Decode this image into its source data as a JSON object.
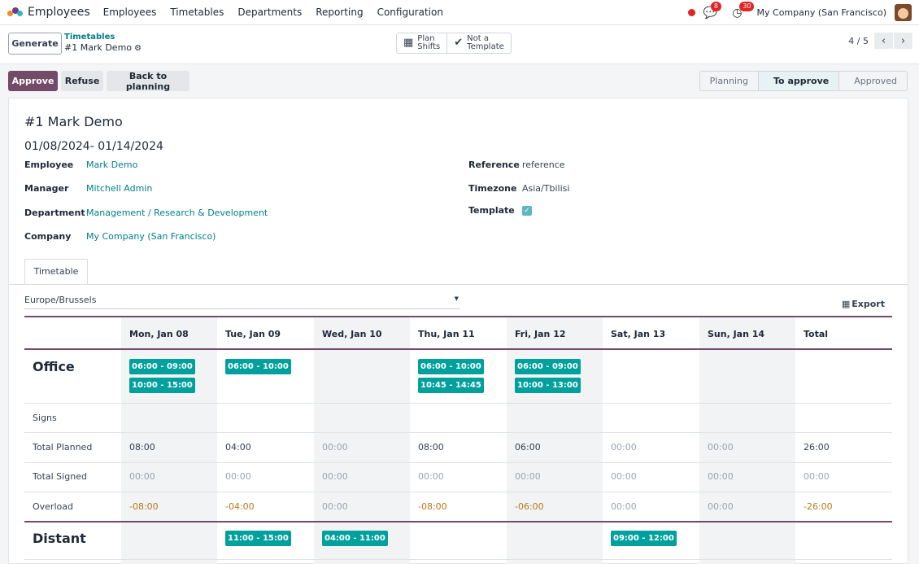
{
  "navbar": {
    "app_name": "Employees",
    "menu": [
      "Employees",
      "Timetables",
      "Departments",
      "Reporting",
      "Configuration"
    ],
    "messages_badge": "8",
    "activities_badge": "30",
    "company": "My Company (San Francisco)"
  },
  "control": {
    "generate_label": "Generate",
    "breadcrumb_parent": "Timetables",
    "breadcrumb_current": "#1 Mark Demo",
    "plan_shifts_line1": "Plan",
    "plan_shifts_line2": "Shifts",
    "not_template_line1": "Not a",
    "not_template_line2": "Template",
    "pager_value": "4 / 5"
  },
  "statusbar": {
    "approve_label": "Approve",
    "refuse_label": "Refuse",
    "back_label": "Back to planning",
    "stages": [
      "Planning",
      "To approve",
      "Approved"
    ],
    "active_stage": "To approve"
  },
  "form": {
    "title": "#1 Mark Demo",
    "date_range": "01/08/2024- 01/14/2024",
    "employee_label": "Employee",
    "employee": "Mark Demo",
    "manager_label": "Manager",
    "manager": "Mitchell Admin",
    "department_label": "Department",
    "department": "Management / Research & Development",
    "company_label": "Company",
    "company": "My Company (San Francisco)",
    "reference_label": "Reference",
    "reference": "reference",
    "timezone_label": "Timezone",
    "timezone": "Asia/Tbilisi",
    "template_label": "Template",
    "template_checked": true
  },
  "timetable": {
    "tab_label": "Timetable",
    "tz_value": "Europe/Brussels",
    "export_label": "Export",
    "days": [
      "Mon, Jan 08",
      "Tue, Jan 09",
      "Wed, Jan 10",
      "Thu, Jan 11",
      "Fri, Jan 12",
      "Sat, Jan 13",
      "Sun, Jan 14"
    ],
    "total_label": "Total",
    "office": {
      "title": "Office",
      "mon_s1": "06:00 - 09:00",
      "mon_s2": "10:00 - 15:00",
      "tue_s1": "06:00 - 10:00",
      "thu_s1": "06:00 - 10:00",
      "thu_s2": "10:45 - 14:45",
      "fri_s1": "06:00 - 09:00",
      "fri_s2": "10:00 - 13:00",
      "signs_label": "Signs",
      "planned_label": "Total Planned",
      "planned": [
        "08:00",
        "04:00",
        "00:00",
        "08:00",
        "06:00",
        "00:00",
        "00:00",
        "26:00"
      ],
      "signed_label": "Total Signed",
      "signed": [
        "00:00",
        "00:00",
        "00:00",
        "00:00",
        "00:00",
        "00:00",
        "00:00",
        "00:00"
      ],
      "overload_label": "Overload",
      "overload": [
        "-08:00",
        "-04:00",
        "00:00",
        "-08:00",
        "-06:00",
        "00:00",
        "00:00",
        "-26:00"
      ]
    },
    "distant": {
      "title": "Distant",
      "tue_s1": "11:00 - 15:00",
      "wed_s1": "04:00 - 11:00",
      "sat_s1": "09:00 - 12:00"
    }
  }
}
